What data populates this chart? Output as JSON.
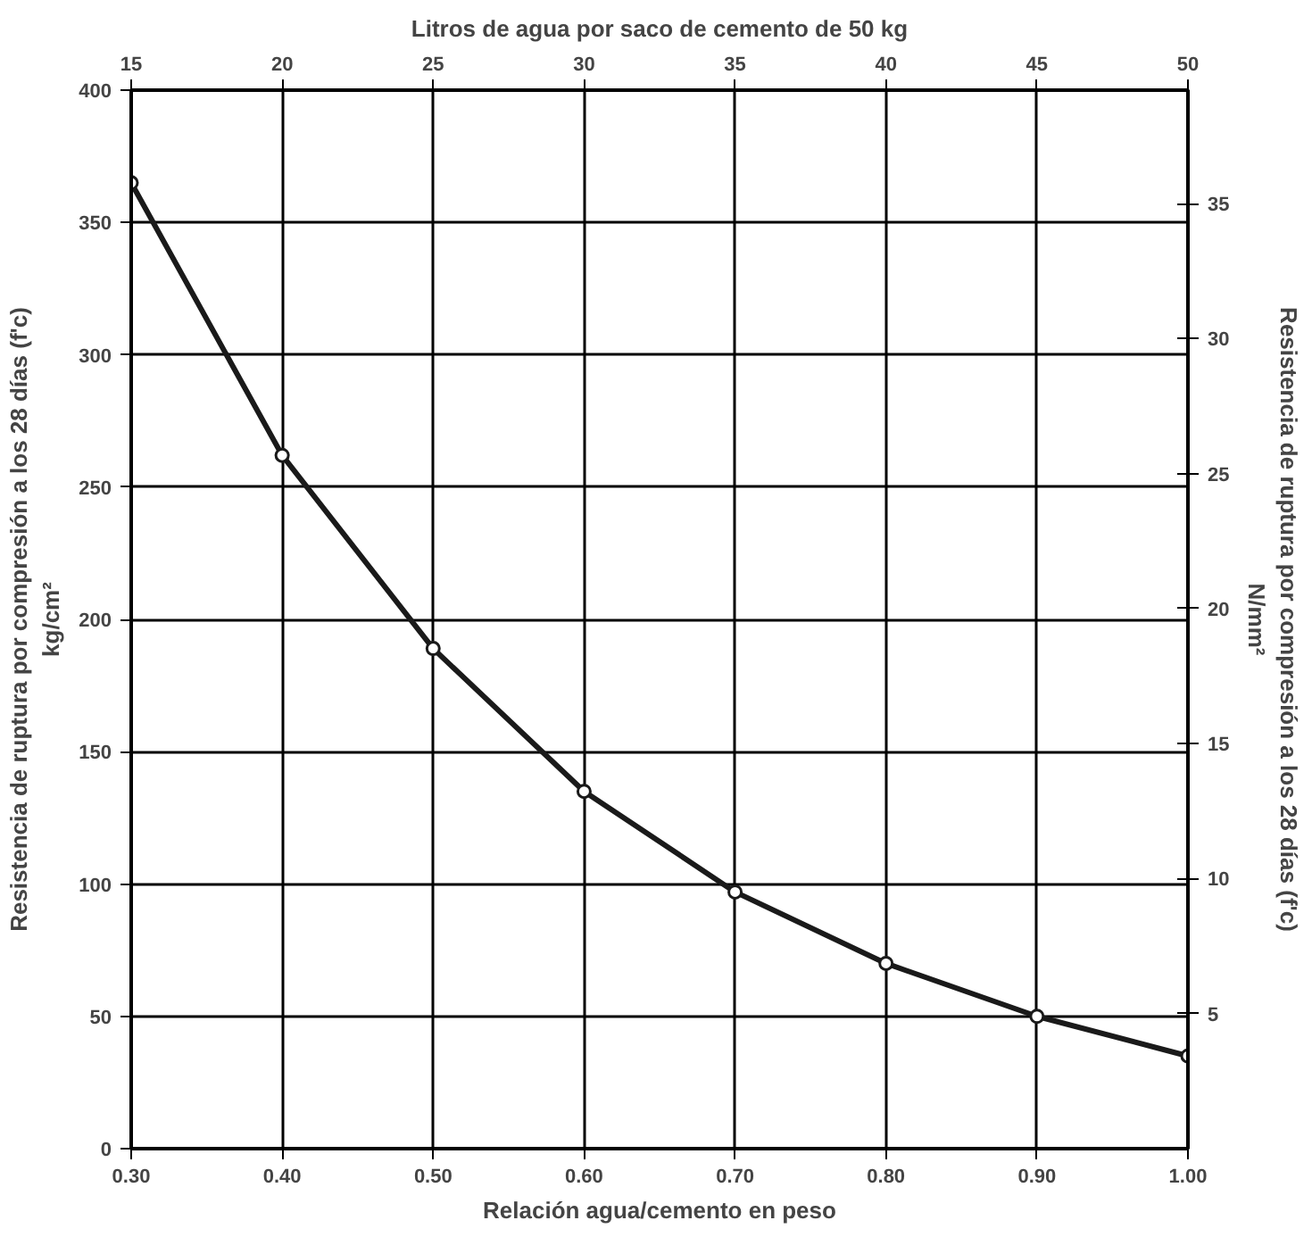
{
  "chart_data": {
    "type": "line",
    "x": [
      0.3,
      0.4,
      0.5,
      0.6,
      0.7,
      0.8,
      0.9,
      1.0
    ],
    "series": [
      {
        "color": "#1a1a1a",
        "values": [
          365,
          262,
          189,
          135,
          97,
          70,
          50,
          35
        ]
      }
    ],
    "marker": "circle",
    "line_style": "solid",
    "grid": true,
    "xlabel": "Relación agua/cemento en peso",
    "ylabel": "Resistencia de ruptura por compresión a los 28 días (f'c)\nkg/cm²",
    "y2label": "Resistencia de ruptura por compresión a los 28 días (f'c)\nN/mm²",
    "x2label": "Litros de agua por saco de cemento de 50 kg",
    "xlim": [
      0.3,
      1.0
    ],
    "xticks": [
      {
        "value": 0.3,
        "label": "0.30"
      },
      {
        "value": 0.4,
        "label": "0.40"
      },
      {
        "value": 0.5,
        "label": "0.50"
      },
      {
        "value": 0.6,
        "label": "0.60"
      },
      {
        "value": 0.7,
        "label": "0.70"
      },
      {
        "value": 0.8,
        "label": "0.80"
      },
      {
        "value": 0.9,
        "label": "0.90"
      },
      {
        "value": 1.0,
        "label": "1.00"
      }
    ],
    "ylim": [
      0,
      400
    ],
    "yticks": [
      0,
      50,
      100,
      150,
      200,
      250,
      300,
      350,
      400
    ],
    "x2lim": [
      15,
      50
    ],
    "x2ticks": [
      15,
      20,
      25,
      30,
      35,
      40,
      45,
      50
    ],
    "y2lim": [
      0,
      39.2
    ],
    "y2ticks": [
      5,
      10,
      15,
      20,
      25,
      30,
      35
    ]
  }
}
